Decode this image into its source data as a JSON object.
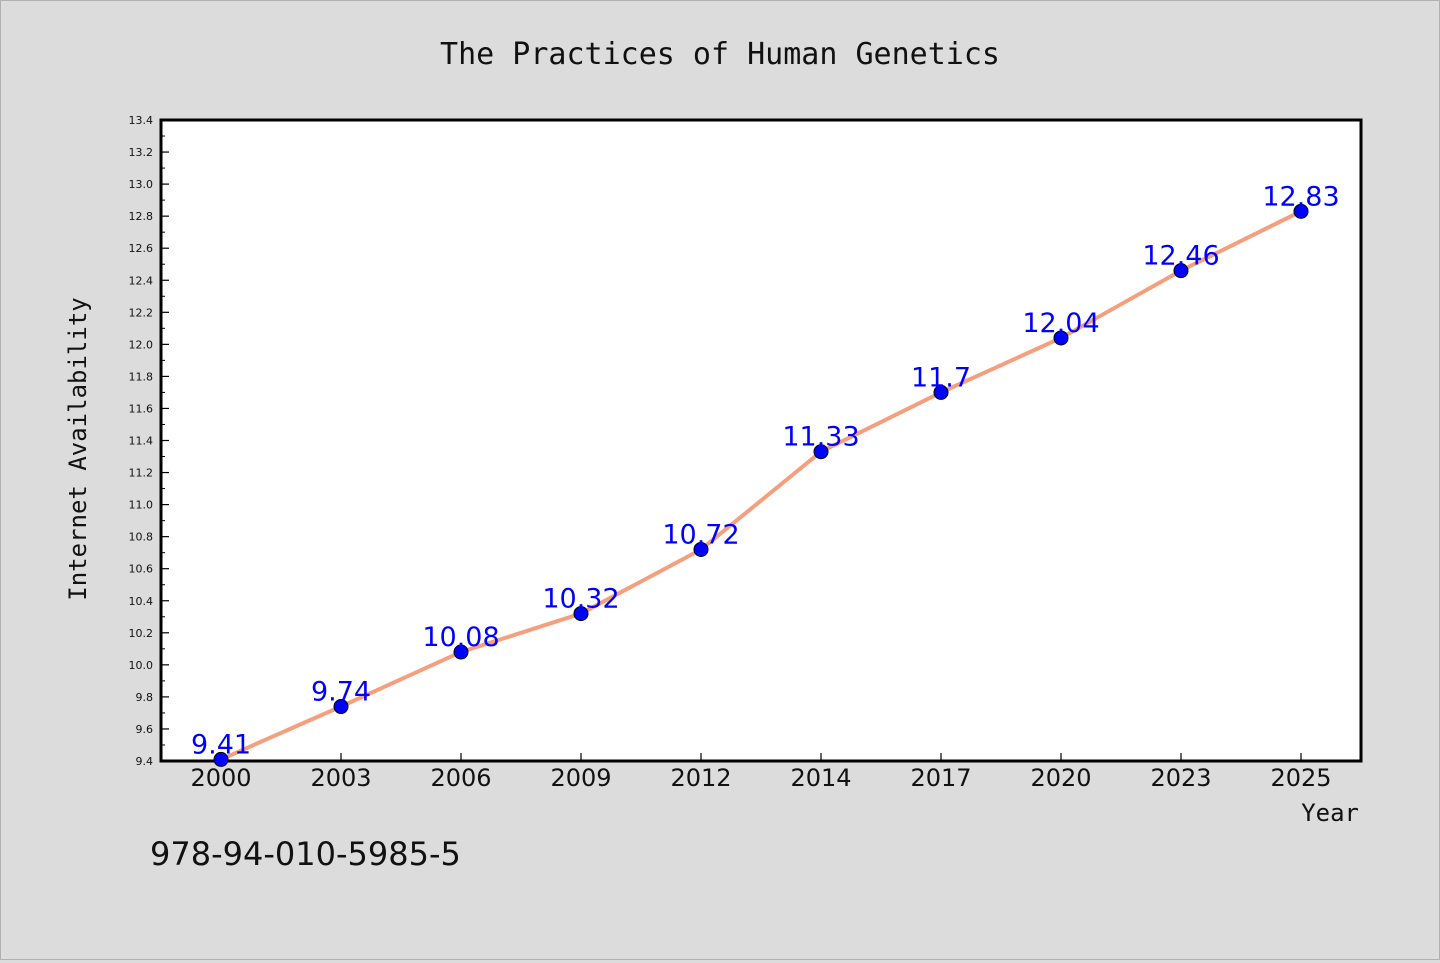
{
  "chart_data": {
    "type": "line",
    "title": "The Practices of Human Genetics",
    "xlabel": "Year",
    "ylabel": "Internet Availability",
    "categories": [
      "2000",
      "2003",
      "2006",
      "2009",
      "2012",
      "2014",
      "2017",
      "2020",
      "2023",
      "2025"
    ],
    "series": [
      {
        "values": [
          9.41,
          9.74,
          10.08,
          10.32,
          10.72,
          11.33,
          11.7,
          12.04,
          12.46,
          12.83
        ],
        "data_labels": [
          "9.41",
          "9.74",
          "10.08",
          "10.32",
          "10.72",
          "11.33",
          "11.7",
          "12.04",
          "12.46",
          "12.83"
        ],
        "line_color": "#f4a07e",
        "marker_color": "#0000ff",
        "label_color": "#0000ff"
      }
    ],
    "ylim": [
      9.4,
      13.4
    ],
    "yticks": [
      "9.4",
      "9.6",
      "9.8",
      "10.0",
      "10.2",
      "10.4",
      "10.6",
      "10.8",
      "11.0",
      "11.2",
      "11.4",
      "11.6",
      "11.8",
      "12.0",
      "12.2",
      "12.4",
      "12.6",
      "12.8",
      "13.0",
      "13.2",
      "13.4"
    ],
    "grid": false,
    "legend": "none"
  },
  "footer": {
    "isbn": "978-94-010-5985-5"
  },
  "colors": {
    "background": "#dcdcdc",
    "plot_background": "#ffffff",
    "axis": "#000000"
  }
}
